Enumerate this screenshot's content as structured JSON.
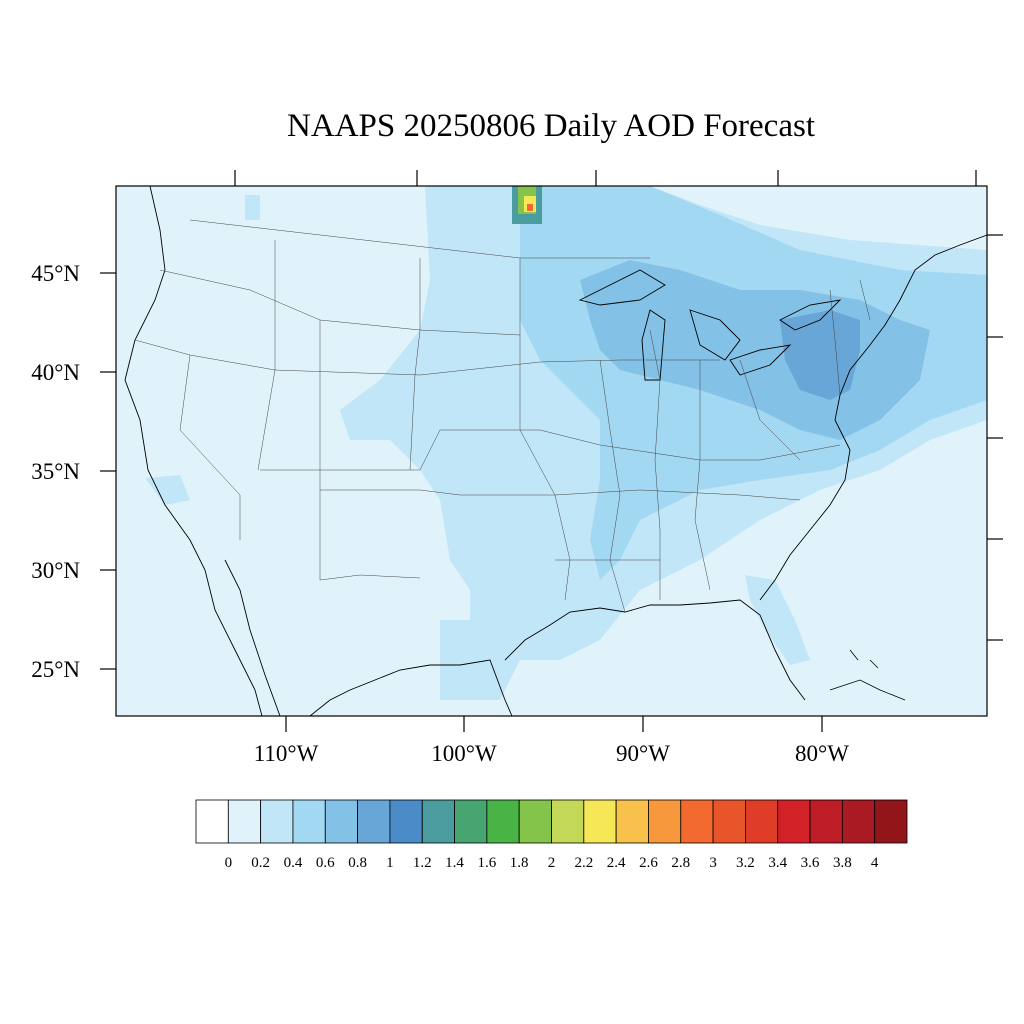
{
  "title": "NAAPS 20250806 Daily AOD Forecast",
  "lat_labels": [
    "45°N",
    "40°N",
    "35°N",
    "30°N",
    "25°N"
  ],
  "lon_labels": [
    "110°W",
    "100°W",
    "90°W",
    "80°W"
  ],
  "colorbar": {
    "labels": [
      "0",
      "0.2",
      "0.4",
      "0.6",
      "0.8",
      "1",
      "1.2",
      "1.4",
      "1.6",
      "1.8",
      "2",
      "2.2",
      "2.4",
      "2.6",
      "2.8",
      "3",
      "3.2",
      "3.4",
      "3.6",
      "3.8",
      "4"
    ],
    "colors": [
      "#ffffff",
      "#e0f3fb",
      "#c1e6f7",
      "#a3d8f3",
      "#84c1e6",
      "#68a6d8",
      "#4a8bc8",
      "#4a9c9e",
      "#47a571",
      "#4ab345",
      "#85c44b",
      "#c4d858",
      "#f6e757",
      "#f8c14b",
      "#f7983d",
      "#f26a2f",
      "#e9552b",
      "#df3d27",
      "#d32128",
      "#be1c26",
      "#aa1a23",
      "#921519"
    ]
  },
  "colors": {
    "ocean": "#e0f3fb",
    "land_base": "#e0f3fb",
    "light_blue": "#c1e6f7",
    "mid_blue": "#a3d8f3",
    "deeper_blue": "#84c1e6",
    "strong_blue": "#68a6d8",
    "outline": "#000000"
  }
}
